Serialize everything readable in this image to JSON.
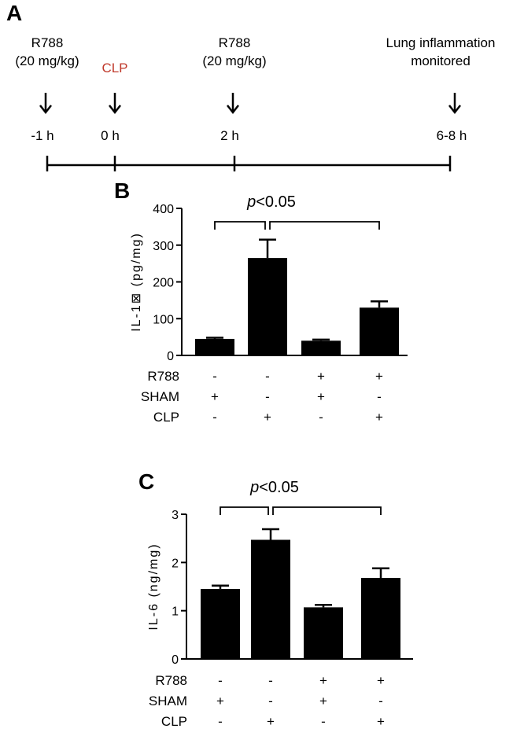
{
  "panels": {
    "timeline_letter": "A",
    "chart_b_letter": "B",
    "chart_c_letter": "C"
  },
  "timeline": {
    "events": [
      {
        "lines": [
          "R788",
          "(20 mg/kg)"
        ],
        "time": "-1 h",
        "color": "#000000"
      },
      {
        "lines": [
          "CLP"
        ],
        "time": "0 h",
        "color": "#c0392b"
      },
      {
        "lines": [
          "R788",
          "(20 mg/kg)"
        ],
        "time": "2 h",
        "color": "#000000"
      },
      {
        "lines": [
          "Lung inflammation",
          "monitored"
        ],
        "time": "6-8 h",
        "color": "#000000"
      }
    ]
  },
  "conditions": {
    "row_labels": [
      "R788",
      "SHAM",
      "CLP"
    ],
    "R788": [
      "-",
      "-",
      "+",
      "+"
    ],
    "SHAM": [
      "+",
      "-",
      "+",
      "-"
    ],
    "CLP": [
      "-",
      "+",
      "-",
      "+"
    ]
  },
  "chart_data": [
    {
      "type": "bar",
      "ylabel": "IL-1⊠ (pg/mg)",
      "ylim": [
        0,
        400
      ],
      "yticks": [
        0,
        100,
        200,
        300,
        400
      ],
      "values": [
        45,
        265,
        40,
        130
      ],
      "errors": [
        3,
        50,
        3,
        17
      ],
      "significance": "<0.05",
      "significance_italic": "p",
      "bar_color": "#000000"
    },
    {
      "type": "bar",
      "ylabel": "IL-6 (ng/mg)",
      "ylim": [
        0,
        3
      ],
      "yticks": [
        0,
        1,
        2,
        3
      ],
      "values": [
        1.45,
        2.47,
        1.07,
        1.68
      ],
      "errors": [
        0.07,
        0.22,
        0.05,
        0.2
      ],
      "significance": "<0.05",
      "significance_italic": "p",
      "bar_color": "#000000"
    }
  ]
}
